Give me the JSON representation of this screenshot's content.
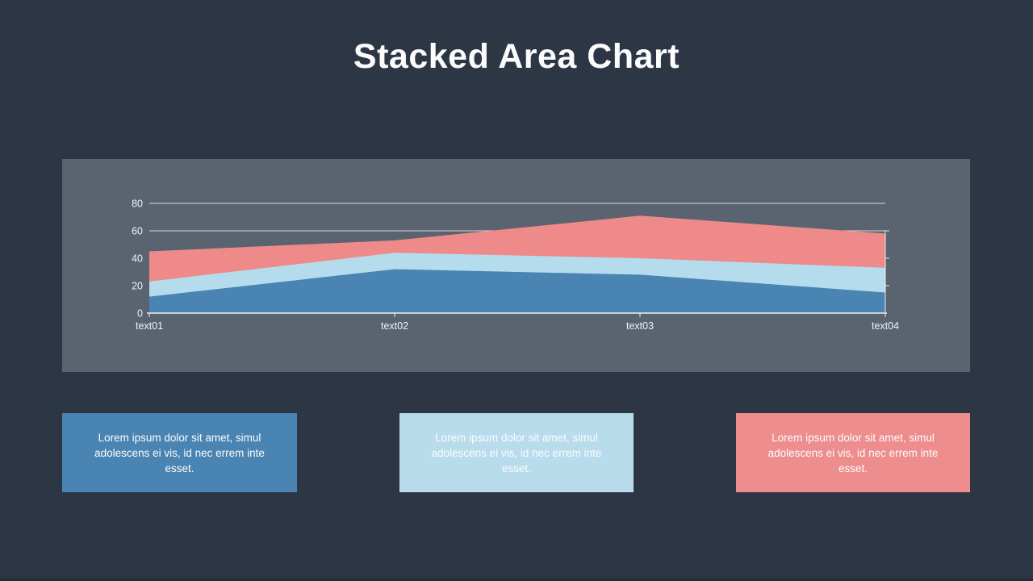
{
  "title": "Stacked Area Chart",
  "colors": {
    "background": "#2d3644",
    "panel": "#5a6370",
    "grid": "#d9dde1",
    "axis": "#eceef0",
    "tick_label": "#f2f3f4",
    "title_text": "#fcfcfc",
    "footer_bar": "#232b37"
  },
  "chart_data": {
    "type": "area",
    "stacked": true,
    "title": "",
    "xlabel": "",
    "ylabel": "",
    "categories": [
      "text01",
      "text02",
      "text03",
      "text04"
    ],
    "series": [
      {
        "name": "series-1-dark-blue",
        "color": "#4a84b2",
        "values": [
          12,
          32,
          28,
          15
        ]
      },
      {
        "name": "series-2-light-blue",
        "color": "#b5dcec",
        "values": [
          11,
          12,
          12,
          18
        ]
      },
      {
        "name": "series-3-salmon",
        "color": "#ee8a8a",
        "values": [
          22,
          9,
          31,
          25
        ]
      }
    ],
    "cumulative_tops": [
      [
        12,
        32,
        28,
        15
      ],
      [
        23,
        44,
        40,
        33
      ],
      [
        45,
        53,
        71,
        58
      ]
    ],
    "yticks": [
      0,
      20,
      40,
      60,
      80
    ],
    "ylim": [
      0,
      88
    ],
    "grid": true,
    "legend": false
  },
  "cards": [
    {
      "text": "Lorem ipsum dolor sit amet, simul adolescens ei vis, id nec errem inte esset.",
      "color": "#4a84b2"
    },
    {
      "text": "Lorem ipsum dolor sit amet, simul adolescens ei vis, id nec errem inte esset.",
      "color": "#b8dcec"
    },
    {
      "text": "Lorem ipsum dolor sit amet, simul adolescens ei vis, id nec errem inte esset.",
      "color": "#ee8d8d"
    }
  ]
}
